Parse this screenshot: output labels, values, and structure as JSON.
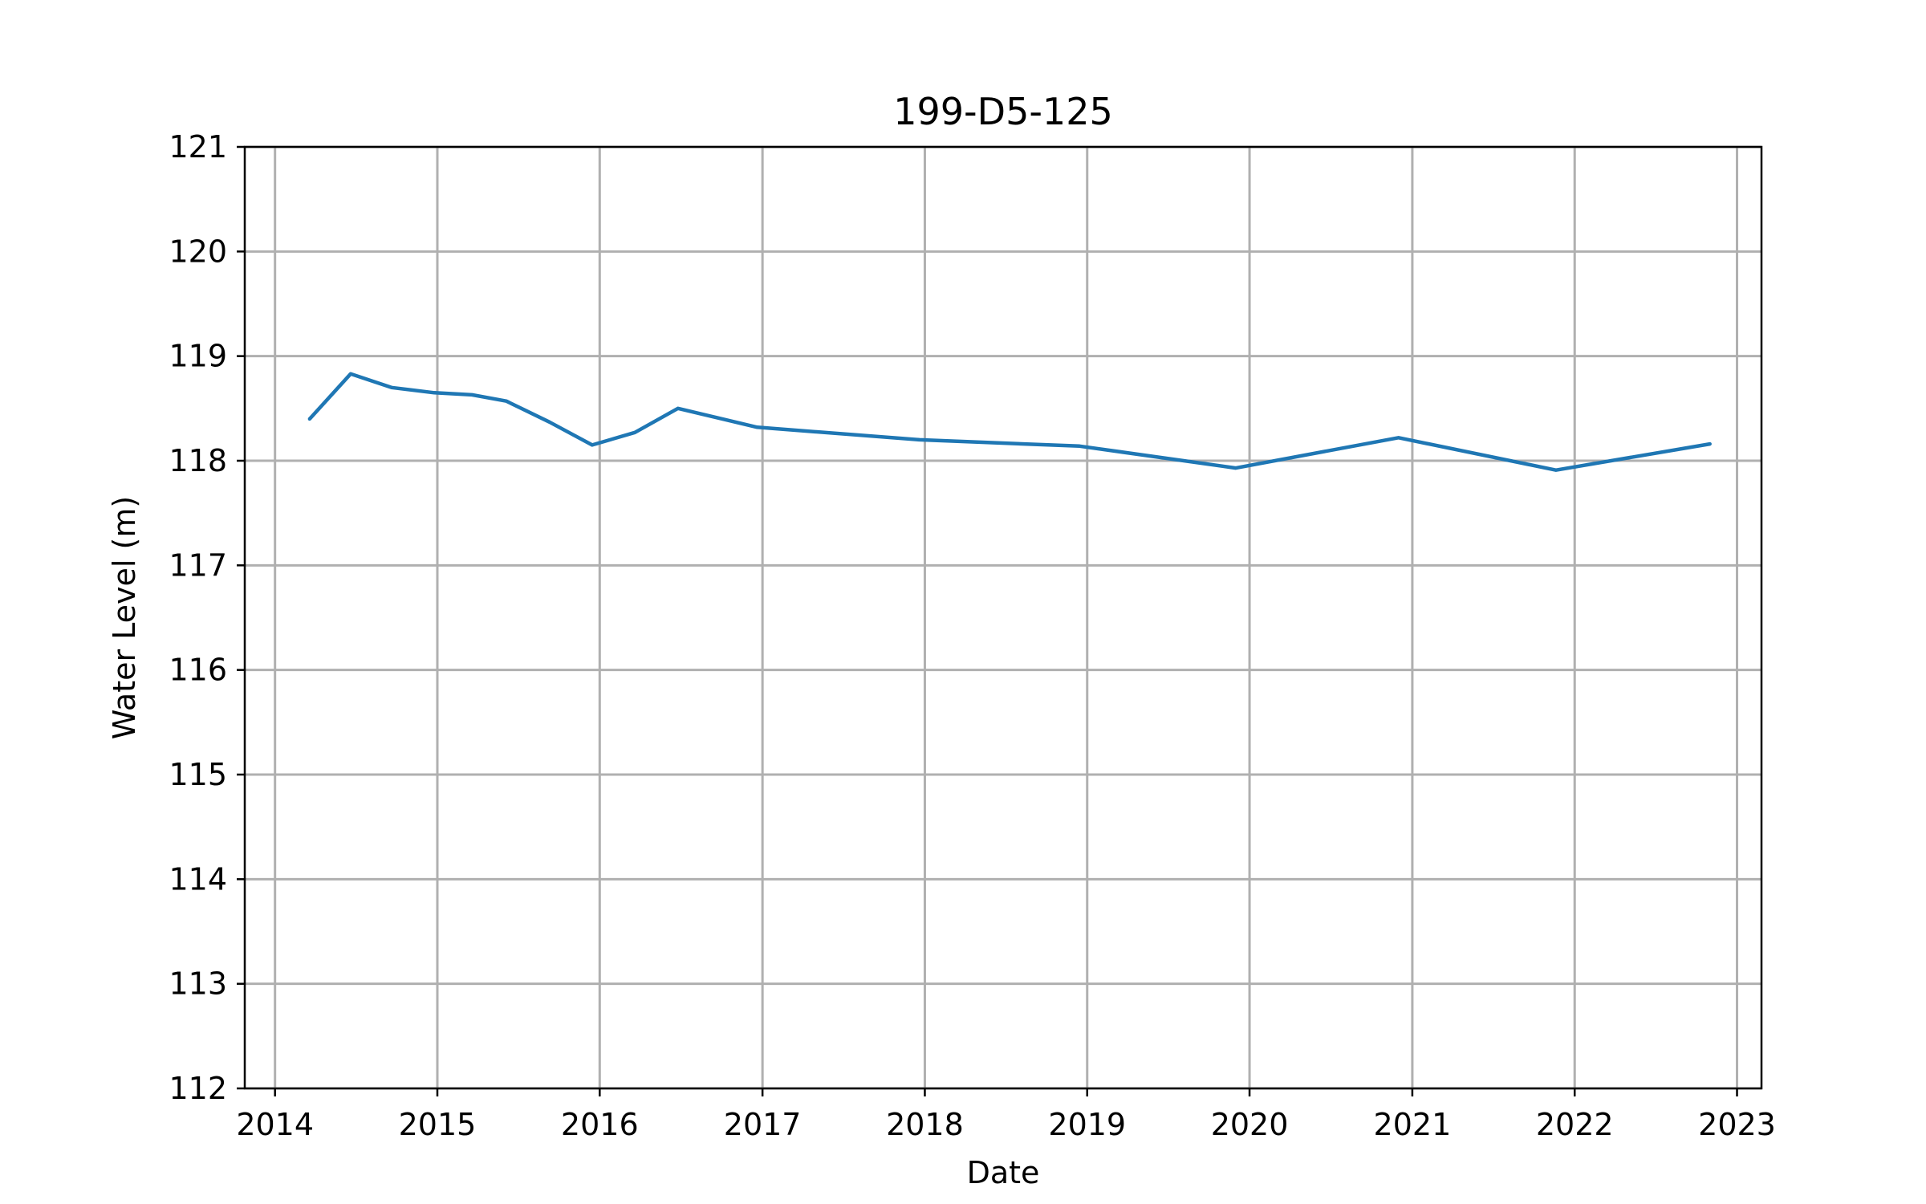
{
  "chart_data": {
    "type": "line",
    "title": "199-D5-125",
    "xlabel": "Date",
    "ylabel": "Water Level (m)",
    "grid": true,
    "ylim": [
      112,
      121
    ],
    "xlim": [
      "2013-10-25",
      "2023-02-25"
    ],
    "x_ticks": [
      {
        "label": "2014",
        "date": "2014-01-01"
      },
      {
        "label": "2015",
        "date": "2015-01-01"
      },
      {
        "label": "2016",
        "date": "2016-01-01"
      },
      {
        "label": "2017",
        "date": "2017-01-01"
      },
      {
        "label": "2018",
        "date": "2018-01-01"
      },
      {
        "label": "2019",
        "date": "2019-01-01"
      },
      {
        "label": "2020",
        "date": "2020-01-01"
      },
      {
        "label": "2021",
        "date": "2021-01-01"
      },
      {
        "label": "2022",
        "date": "2022-01-01"
      },
      {
        "label": "2023",
        "date": "2023-01-01"
      }
    ],
    "y_ticks": [
      112,
      113,
      114,
      115,
      116,
      117,
      118,
      119,
      120,
      121
    ],
    "colors": {
      "series": "#1f77b4",
      "grid": "#b0b0b0",
      "axis": "#000000"
    },
    "series": [
      {
        "x": [
          "2014-03-20",
          "2014-06-20",
          "2014-09-20",
          "2014-12-25",
          "2015-03-20",
          "2015-06-05",
          "2015-09-10",
          "2015-12-15",
          "2016-03-20",
          "2016-06-25",
          "2016-12-20",
          "2017-12-20",
          "2018-12-15",
          "2019-12-01",
          "2020-12-01",
          "2021-11-20",
          "2022-11-01"
        ],
        "y": [
          118.4,
          118.83,
          118.7,
          118.65,
          118.63,
          118.57,
          118.37,
          118.15,
          118.27,
          118.5,
          118.32,
          118.2,
          118.14,
          117.93,
          118.22,
          117.91,
          118.16
        ]
      }
    ]
  }
}
